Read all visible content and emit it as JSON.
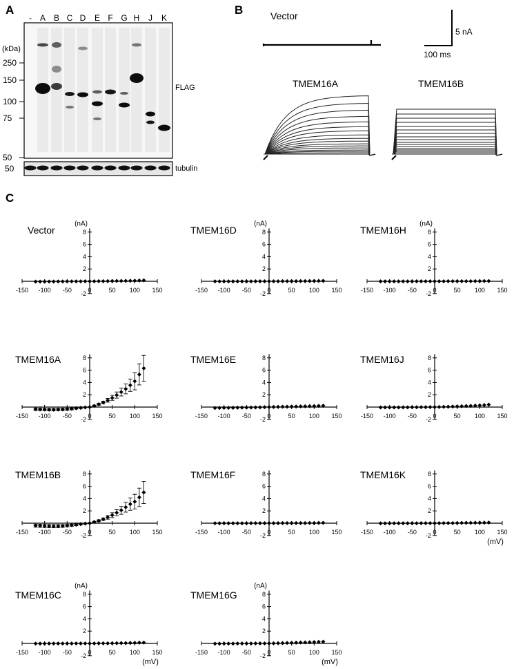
{
  "panel_a": {
    "label": "A",
    "lanes": [
      "-",
      "A",
      "B",
      "C",
      "D",
      "E",
      "F",
      "G",
      "H",
      "J",
      "K"
    ],
    "unit": "(kDa)",
    "markers": [
      "250",
      "150",
      "100",
      "75",
      "50"
    ],
    "tubulin_marker": "50",
    "blot_label": "FLAG",
    "loading_label": "tubulin"
  },
  "panel_b": {
    "label": "B",
    "vector_title": "Vector",
    "a_title": "TMEM16A",
    "b_title": "TMEM16B",
    "scale_current": "5 nA",
    "scale_time": "100 ms"
  },
  "panel_c": {
    "label": "C",
    "y_unit": "(nA)",
    "x_unit": "(mV)",
    "y_ticks": [
      "8",
      "6",
      "4",
      "2",
      "-2"
    ],
    "x_ticks": [
      "-150",
      "-100",
      "-50",
      "0",
      "50",
      "100",
      "150"
    ]
  },
  "chart_data": [
    {
      "type": "scatter",
      "title": "Vector",
      "xlabel": "(mV)",
      "ylabel": "(nA)",
      "xlim": [
        -150,
        150
      ],
      "ylim": [
        -2,
        8
      ],
      "x": [
        -120,
        -110,
        -100,
        -90,
        -80,
        -70,
        -60,
        -50,
        -40,
        -30,
        -20,
        -10,
        0,
        10,
        20,
        30,
        40,
        50,
        60,
        70,
        80,
        90,
        100,
        110,
        120
      ],
      "y": [
        -0.05,
        -0.05,
        -0.05,
        -0.04,
        -0.04,
        -0.03,
        -0.03,
        -0.02,
        -0.02,
        -0.01,
        -0.01,
        0,
        0,
        0,
        0.01,
        0.02,
        0.03,
        0.04,
        0.05,
        0.06,
        0.07,
        0.08,
        0.1,
        0.12,
        0.15
      ]
    },
    {
      "type": "scatter",
      "title": "TMEM16D",
      "xlabel": "",
      "ylabel": "(nA)",
      "xlim": [
        -150,
        150
      ],
      "ylim": [
        -2,
        8
      ],
      "x": [
        -120,
        -110,
        -100,
        -90,
        -80,
        -70,
        -60,
        -50,
        -40,
        -30,
        -20,
        -10,
        0,
        10,
        20,
        30,
        40,
        50,
        60,
        70,
        80,
        90,
        100,
        110,
        120
      ],
      "y": [
        -0.02,
        -0.02,
        -0.02,
        -0.02,
        -0.02,
        -0.01,
        -0.01,
        -0.01,
        -0.01,
        0,
        0,
        0,
        0,
        0,
        0,
        0.01,
        0.01,
        0.02,
        0.02,
        0.03,
        0.03,
        0.04,
        0.05,
        0.06,
        0.07
      ]
    },
    {
      "type": "scatter",
      "title": "TMEM16H",
      "xlabel": "",
      "ylabel": "(nA)",
      "xlim": [
        -150,
        150
      ],
      "ylim": [
        -2,
        8
      ],
      "x": [
        -120,
        -110,
        -100,
        -90,
        -80,
        -70,
        -60,
        -50,
        -40,
        -30,
        -20,
        -10,
        0,
        10,
        20,
        30,
        40,
        50,
        60,
        70,
        80,
        90,
        100,
        110,
        120
      ],
      "y": [
        -0.02,
        -0.02,
        -0.02,
        -0.02,
        -0.01,
        -0.01,
        -0.01,
        -0.01,
        0,
        0,
        0,
        0,
        0,
        0,
        0,
        0.01,
        0.01,
        0.01,
        0.02,
        0.02,
        0.02,
        0.03,
        0.03,
        0.04,
        0.04
      ]
    },
    {
      "type": "scatter",
      "title": "TMEM16A",
      "xlabel": "",
      "ylabel": "",
      "xlim": [
        -150,
        150
      ],
      "ylim": [
        -2,
        8
      ],
      "x": [
        -120,
        -110,
        -100,
        -90,
        -80,
        -70,
        -60,
        -50,
        -40,
        -30,
        -20,
        -10,
        0,
        10,
        20,
        30,
        40,
        50,
        60,
        70,
        80,
        90,
        100,
        110,
        120
      ],
      "y": [
        -0.35,
        -0.38,
        -0.4,
        -0.42,
        -0.42,
        -0.4,
        -0.38,
        -0.33,
        -0.28,
        -0.2,
        -0.12,
        -0.05,
        0,
        0.2,
        0.45,
        0.75,
        1.1,
        1.5,
        1.95,
        2.45,
        2.95,
        3.55,
        4.2,
        5.3,
        6.3
      ],
      "error": [
        0.2,
        0.2,
        0.2,
        0.2,
        0.2,
        0.2,
        0.2,
        0.18,
        0.15,
        0.12,
        0.1,
        0.06,
        0.05,
        0.1,
        0.15,
        0.2,
        0.3,
        0.4,
        0.5,
        0.65,
        0.8,
        1.0,
        1.4,
        1.7,
        2.1
      ]
    },
    {
      "type": "scatter",
      "title": "TMEM16E",
      "xlabel": "",
      "ylabel": "",
      "xlim": [
        -150,
        150
      ],
      "ylim": [
        -2,
        8
      ],
      "x": [
        -120,
        -110,
        -100,
        -90,
        -80,
        -70,
        -60,
        -50,
        -40,
        -30,
        -20,
        -10,
        0,
        10,
        20,
        30,
        40,
        50,
        60,
        70,
        80,
        90,
        100,
        110,
        120
      ],
      "y": [
        -0.15,
        -0.14,
        -0.13,
        -0.12,
        -0.11,
        -0.1,
        -0.09,
        -0.08,
        -0.07,
        -0.05,
        -0.04,
        -0.02,
        0,
        0.02,
        0.03,
        0.05,
        0.06,
        0.08,
        0.09,
        0.11,
        0.13,
        0.15,
        0.17,
        0.2,
        0.22
      ]
    },
    {
      "type": "scatter",
      "title": "TMEM16J",
      "xlabel": "",
      "ylabel": "",
      "xlim": [
        -150,
        150
      ],
      "ylim": [
        -2,
        8
      ],
      "x": [
        -120,
        -110,
        -100,
        -90,
        -80,
        -70,
        -60,
        -50,
        -40,
        -30,
        -20,
        -10,
        0,
        10,
        20,
        30,
        40,
        50,
        60,
        70,
        80,
        90,
        100,
        110,
        120
      ],
      "y": [
        -0.06,
        -0.06,
        -0.05,
        -0.05,
        -0.05,
        -0.04,
        -0.04,
        -0.03,
        -0.03,
        -0.02,
        -0.01,
        0,
        0,
        0.02,
        0.04,
        0.06,
        0.08,
        0.11,
        0.14,
        0.17,
        0.2,
        0.24,
        0.28,
        0.33,
        0.4
      ]
    },
    {
      "type": "scatter",
      "title": "TMEM16B",
      "xlabel": "",
      "ylabel": "",
      "xlim": [
        -150,
        150
      ],
      "ylim": [
        -2,
        8
      ],
      "x": [
        -120,
        -110,
        -100,
        -90,
        -80,
        -70,
        -60,
        -50,
        -40,
        -30,
        -20,
        -10,
        0,
        10,
        20,
        30,
        40,
        50,
        60,
        70,
        80,
        90,
        100,
        110,
        120
      ],
      "y": [
        -0.4,
        -0.42,
        -0.45,
        -0.47,
        -0.48,
        -0.47,
        -0.45,
        -0.4,
        -0.33,
        -0.25,
        -0.15,
        -0.07,
        0,
        0.2,
        0.4,
        0.65,
        0.95,
        1.3,
        1.7,
        2.1,
        2.6,
        3.1,
        3.5,
        4.2,
        5.0
      ],
      "error": [
        0.25,
        0.25,
        0.25,
        0.25,
        0.25,
        0.25,
        0.22,
        0.2,
        0.18,
        0.15,
        0.12,
        0.08,
        0.05,
        0.1,
        0.15,
        0.2,
        0.3,
        0.4,
        0.5,
        0.65,
        0.8,
        1.0,
        1.2,
        1.5,
        1.8
      ]
    },
    {
      "type": "scatter",
      "title": "TMEM16F",
      "xlabel": "",
      "ylabel": "",
      "xlim": [
        -150,
        150
      ],
      "ylim": [
        -2,
        8
      ],
      "x": [
        -120,
        -110,
        -100,
        -90,
        -80,
        -70,
        -60,
        -50,
        -40,
        -30,
        -20,
        -10,
        0,
        10,
        20,
        30,
        40,
        50,
        60,
        70,
        80,
        90,
        100,
        110,
        120
      ],
      "y": [
        -0.02,
        -0.02,
        -0.02,
        -0.02,
        -0.01,
        -0.01,
        -0.01,
        -0.01,
        0,
        0,
        0,
        0,
        0,
        0,
        0,
        0.01,
        0.01,
        0.01,
        0.02,
        0.02,
        0.02,
        0.03,
        0.03,
        0.04,
        0.05
      ]
    },
    {
      "type": "scatter",
      "title": "TMEM16K",
      "xlabel": "(mV)",
      "ylabel": "",
      "xlim": [
        -150,
        150
      ],
      "ylim": [
        -2,
        8
      ],
      "x": [
        -120,
        -110,
        -100,
        -90,
        -80,
        -70,
        -60,
        -50,
        -40,
        -30,
        -20,
        -10,
        0,
        10,
        20,
        30,
        40,
        50,
        60,
        70,
        80,
        90,
        100,
        110,
        120
      ],
      "y": [
        -0.03,
        -0.03,
        -0.03,
        -0.02,
        -0.02,
        -0.02,
        -0.01,
        -0.01,
        -0.01,
        0,
        0,
        0,
        0,
        0,
        0.01,
        0.01,
        0.02,
        0.03,
        0.04,
        0.05,
        0.06,
        0.07,
        0.08,
        0.09,
        0.1
      ]
    },
    {
      "type": "scatter",
      "title": "TMEM16C",
      "xlabel": "(mV)",
      "ylabel": "(nA)",
      "xlim": [
        -150,
        150
      ],
      "ylim": [
        -2,
        8
      ],
      "x": [
        -120,
        -110,
        -100,
        -90,
        -80,
        -70,
        -60,
        -50,
        -40,
        -30,
        -20,
        -10,
        0,
        10,
        20,
        30,
        40,
        50,
        60,
        70,
        80,
        90,
        100,
        110,
        120
      ],
      "y": [
        -0.03,
        -0.03,
        -0.03,
        -0.02,
        -0.02,
        -0.02,
        -0.01,
        -0.01,
        -0.01,
        0,
        0,
        0,
        0,
        0,
        0.01,
        0.01,
        0.02,
        0.03,
        0.04,
        0.05,
        0.06,
        0.08,
        0.1,
        0.12,
        0.14
      ]
    },
    {
      "type": "scatter",
      "title": "TMEM16G",
      "xlabel": "(mV)",
      "ylabel": "(nA)",
      "xlim": [
        -150,
        150
      ],
      "ylim": [
        -2,
        8
      ],
      "x": [
        -120,
        -110,
        -100,
        -90,
        -80,
        -70,
        -60,
        -50,
        -40,
        -30,
        -20,
        -10,
        0,
        10,
        20,
        30,
        40,
        50,
        60,
        70,
        80,
        90,
        100,
        110,
        120
      ],
      "y": [
        -0.04,
        -0.04,
        -0.03,
        -0.03,
        -0.03,
        -0.02,
        -0.02,
        -0.01,
        -0.01,
        0,
        0,
        0,
        0,
        0.02,
        0.04,
        0.06,
        0.08,
        0.1,
        0.12,
        0.15,
        0.17,
        0.2,
        0.22,
        0.25,
        0.28
      ]
    }
  ]
}
